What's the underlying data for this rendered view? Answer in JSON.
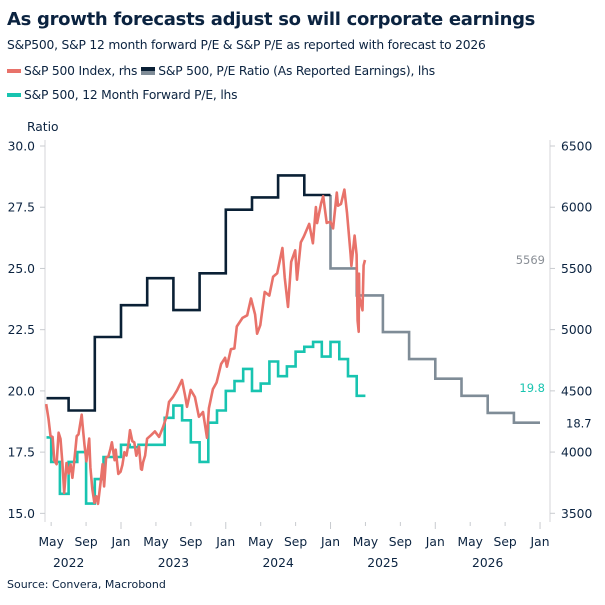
{
  "chart_data": {
    "type": "line",
    "title": "As growth forecasts adjust so will corporate earnings",
    "subtitle": "S&P500, S&P 12 month forward P/E & S&P P/E as reported with forecast to 2026",
    "ylabel_left": "Ratio",
    "ylim_left": [
      15,
      30
    ],
    "yticks_left": [
      "15.0",
      "17.5",
      "20.0",
      "22.5",
      "25.0",
      "27.5",
      "30.0"
    ],
    "ylim_right": [
      3500,
      6500
    ],
    "yticks_right": [
      "3500",
      "4000",
      "4500",
      "5000",
      "5500",
      "6000",
      "6500"
    ],
    "xlim": [
      "2022-04-01",
      "2027-01-31"
    ],
    "xticks": [
      {
        "date": "2022-05-01",
        "label": "May"
      },
      {
        "date": "2022-09-01",
        "label": "Sep"
      },
      {
        "date": "2023-01-01",
        "label": "Jan"
      },
      {
        "date": "2023-05-01",
        "label": "May"
      },
      {
        "date": "2023-09-01",
        "label": "Sep"
      },
      {
        "date": "2024-01-01",
        "label": "Jan"
      },
      {
        "date": "2024-05-01",
        "label": "May"
      },
      {
        "date": "2024-09-01",
        "label": "Sep"
      },
      {
        "date": "2025-01-01",
        "label": "Jan"
      },
      {
        "date": "2025-05-01",
        "label": "May"
      },
      {
        "date": "2025-09-01",
        "label": "Sep"
      },
      {
        "date": "2026-01-01",
        "label": "Jan"
      },
      {
        "date": "2026-05-01",
        "label": "May"
      },
      {
        "date": "2026-09-01",
        "label": "Sep"
      },
      {
        "date": "2027-01-01",
        "label": "Jan"
      }
    ],
    "year_labels": [
      {
        "date": "2022-07-01",
        "label": "2022"
      },
      {
        "date": "2023-07-01",
        "label": "2023"
      },
      {
        "date": "2024-07-01",
        "label": "2024"
      },
      {
        "date": "2025-07-01",
        "label": "2025"
      },
      {
        "date": "2026-07-01",
        "label": "2026"
      }
    ],
    "grid": false,
    "legend_placement": "top-left",
    "series": [
      {
        "name": "S&P 500 Index, rhs",
        "axis": "right",
        "color": "#e8726a",
        "end_label": "5569",
        "end_label_color": "#8a8f96",
        "points": [
          [
            "2022-04-14",
            4392
          ],
          [
            "2022-04-22",
            4272
          ],
          [
            "2022-04-29",
            4132
          ],
          [
            "2022-05-06",
            4123
          ],
          [
            "2022-05-12",
            3930
          ],
          [
            "2022-05-20",
            3901
          ],
          [
            "2022-05-27",
            4158
          ],
          [
            "2022-06-03",
            4108
          ],
          [
            "2022-06-10",
            3900
          ],
          [
            "2022-06-16",
            3666
          ],
          [
            "2022-06-24",
            3911
          ],
          [
            "2022-07-01",
            3825
          ],
          [
            "2022-07-08",
            3899
          ],
          [
            "2022-07-14",
            3790
          ],
          [
            "2022-07-22",
            3961
          ],
          [
            "2022-07-29",
            4130
          ],
          [
            "2022-08-05",
            4145
          ],
          [
            "2022-08-16",
            4305
          ],
          [
            "2022-08-19",
            4228
          ],
          [
            "2022-08-26",
            4057
          ],
          [
            "2022-09-02",
            3924
          ],
          [
            "2022-09-12",
            4110
          ],
          [
            "2022-09-16",
            3873
          ],
          [
            "2022-09-23",
            3693
          ],
          [
            "2022-09-30",
            3586
          ],
          [
            "2022-10-07",
            3639
          ],
          [
            "2022-10-12",
            3577
          ],
          [
            "2022-10-21",
            3752
          ],
          [
            "2022-10-28",
            3901
          ],
          [
            "2022-11-03",
            3720
          ],
          [
            "2022-11-10",
            3956
          ],
          [
            "2022-11-18",
            3965
          ],
          [
            "2022-11-25",
            4026
          ],
          [
            "2022-11-30",
            4080
          ],
          [
            "2022-12-09",
            3934
          ],
          [
            "2022-12-13",
            4019
          ],
          [
            "2022-12-22",
            3822
          ],
          [
            "2022-12-30",
            3840
          ],
          [
            "2023-01-06",
            3895
          ],
          [
            "2023-01-13",
            3999
          ],
          [
            "2023-01-20",
            3972
          ],
          [
            "2023-01-27",
            4071
          ],
          [
            "2023-02-02",
            4179
          ],
          [
            "2023-02-10",
            4090
          ],
          [
            "2023-02-17",
            4079
          ],
          [
            "2023-02-24",
            3970
          ],
          [
            "2023-03-03",
            4045
          ],
          [
            "2023-03-10",
            3862
          ],
          [
            "2023-03-13",
            3855
          ],
          [
            "2023-03-17",
            3917
          ],
          [
            "2023-03-24",
            3971
          ],
          [
            "2023-03-31",
            4109
          ],
          [
            "2023-04-14",
            4137
          ],
          [
            "2023-04-28",
            4169
          ],
          [
            "2023-05-12",
            4124
          ],
          [
            "2023-05-26",
            4205
          ],
          [
            "2023-06-09",
            4299
          ],
          [
            "2023-06-16",
            4410
          ],
          [
            "2023-06-30",
            4450
          ],
          [
            "2023-07-14",
            4505
          ],
          [
            "2023-07-31",
            4589
          ],
          [
            "2023-08-11",
            4464
          ],
          [
            "2023-08-18",
            4370
          ],
          [
            "2023-08-31",
            4508
          ],
          [
            "2023-09-15",
            4450
          ],
          [
            "2023-09-29",
            4288
          ],
          [
            "2023-10-06",
            4308
          ],
          [
            "2023-10-13",
            4327
          ],
          [
            "2023-10-27",
            4117
          ],
          [
            "2023-11-03",
            4358
          ],
          [
            "2023-11-17",
            4514
          ],
          [
            "2023-11-30",
            4568
          ],
          [
            "2023-12-15",
            4719
          ],
          [
            "2023-12-29",
            4770
          ],
          [
            "2024-01-05",
            4697
          ],
          [
            "2024-01-19",
            4840
          ],
          [
            "2024-01-31",
            4846
          ],
          [
            "2024-02-09",
            5026
          ],
          [
            "2024-02-29",
            5096
          ],
          [
            "2024-03-15",
            5117
          ],
          [
            "2024-03-28",
            5254
          ],
          [
            "2024-04-12",
            5123
          ],
          [
            "2024-04-19",
            4967
          ],
          [
            "2024-04-30",
            5036
          ],
          [
            "2024-05-15",
            5308
          ],
          [
            "2024-05-31",
            5278
          ],
          [
            "2024-06-14",
            5432
          ],
          [
            "2024-06-28",
            5460
          ],
          [
            "2024-07-16",
            5667
          ],
          [
            "2024-07-24",
            5427
          ],
          [
            "2024-08-05",
            5186
          ],
          [
            "2024-08-16",
            5554
          ],
          [
            "2024-08-30",
            5648
          ],
          [
            "2024-09-06",
            5408
          ],
          [
            "2024-09-19",
            5713
          ],
          [
            "2024-09-30",
            5762
          ],
          [
            "2024-10-18",
            5864
          ],
          [
            "2024-10-31",
            5705
          ],
          [
            "2024-11-11",
            6001
          ],
          [
            "2024-11-15",
            5870
          ],
          [
            "2024-11-29",
            6032
          ],
          [
            "2024-12-06",
            6090
          ],
          [
            "2024-12-18",
            5872
          ],
          [
            "2024-12-31",
            5882
          ],
          [
            "2025-01-10",
            5827
          ],
          [
            "2025-01-23",
            6119
          ],
          [
            "2025-01-27",
            6012
          ],
          [
            "2025-02-07",
            6026
          ],
          [
            "2025-02-19",
            6144
          ],
          [
            "2025-02-28",
            5955
          ],
          [
            "2025-03-10",
            5615
          ],
          [
            "2025-03-13",
            5521
          ],
          [
            "2025-03-24",
            5768
          ],
          [
            "2025-03-31",
            5612
          ],
          [
            "2025-04-04",
            5074
          ],
          [
            "2025-04-08",
            4982
          ],
          [
            "2025-04-09",
            5457
          ],
          [
            "2025-04-10",
            5268
          ],
          [
            "2025-04-21",
            5158
          ],
          [
            "2025-04-25",
            5525
          ],
          [
            "2025-04-30",
            5569
          ]
        ]
      },
      {
        "name": "S&P 500, P/E Ratio (As Reported Earnings), lhs",
        "axis": "left",
        "color": "#0a2035",
        "forecast_color": "#7f8c97",
        "end_label": "18.7",
        "end_label_color": "#0b2340",
        "steps": [
          [
            "2022-04-15",
            19.7
          ],
          [
            "2022-07-01",
            19.2
          ],
          [
            "2022-10-01",
            22.2
          ],
          [
            "2023-01-01",
            23.5
          ],
          [
            "2023-04-01",
            24.6
          ],
          [
            "2023-07-01",
            23.3
          ],
          [
            "2023-10-01",
            24.8
          ],
          [
            "2024-01-01",
            27.4
          ],
          [
            "2024-04-01",
            27.9
          ],
          [
            "2024-07-01",
            28.8
          ],
          [
            "2024-10-01",
            28.0
          ]
        ],
        "forecast_steps": [
          [
            "2025-01-01",
            25.0
          ],
          [
            "2025-04-01",
            23.9
          ],
          [
            "2025-07-01",
            22.4
          ],
          [
            "2025-10-01",
            21.3
          ],
          [
            "2026-01-01",
            20.5
          ],
          [
            "2026-04-01",
            19.8
          ],
          [
            "2026-07-01",
            19.1
          ],
          [
            "2026-10-01",
            18.7
          ]
        ],
        "end": "2027-01-01"
      },
      {
        "name": "S&P 500, 12 Month Forward P/E, lhs",
        "axis": "left",
        "color": "#18c4b0",
        "end_label": "19.8",
        "end_label_color": "#18c4b0",
        "steps": [
          [
            "2022-04-15",
            18.1
          ],
          [
            "2022-05-01",
            17.1
          ],
          [
            "2022-06-01",
            15.8
          ],
          [
            "2022-07-01",
            17.1
          ],
          [
            "2022-08-01",
            17.5
          ],
          [
            "2022-09-01",
            15.4
          ],
          [
            "2022-10-01",
            16.4
          ],
          [
            "2022-11-01",
            17.3
          ],
          [
            "2022-12-01",
            17.3
          ],
          [
            "2023-01-01",
            17.8
          ],
          [
            "2023-02-01",
            17.7
          ],
          [
            "2023-03-01",
            17.8
          ],
          [
            "2023-04-01",
            17.8
          ],
          [
            "2023-05-01",
            17.8
          ],
          [
            "2023-06-01",
            18.9
          ],
          [
            "2023-07-01",
            19.4
          ],
          [
            "2023-08-01",
            18.8
          ],
          [
            "2023-09-01",
            17.9
          ],
          [
            "2023-10-01",
            17.1
          ],
          [
            "2023-11-01",
            18.7
          ],
          [
            "2023-12-01",
            19.2
          ],
          [
            "2024-01-01",
            20.0
          ],
          [
            "2024-02-01",
            20.4
          ],
          [
            "2024-03-01",
            20.9
          ],
          [
            "2024-04-01",
            20.0
          ],
          [
            "2024-05-01",
            20.3
          ],
          [
            "2024-06-01",
            21.2
          ],
          [
            "2024-07-01",
            20.6
          ],
          [
            "2024-08-01",
            21.0
          ],
          [
            "2024-09-01",
            21.6
          ],
          [
            "2024-10-01",
            21.8
          ],
          [
            "2024-11-01",
            22.0
          ],
          [
            "2024-12-01",
            21.4
          ],
          [
            "2025-01-01",
            22.0
          ],
          [
            "2025-02-01",
            21.3
          ],
          [
            "2025-03-01",
            20.6
          ],
          [
            "2025-04-01",
            19.8
          ]
        ],
        "end": "2025-05-01"
      }
    ]
  },
  "source": "Source: Convera, Macrobond"
}
